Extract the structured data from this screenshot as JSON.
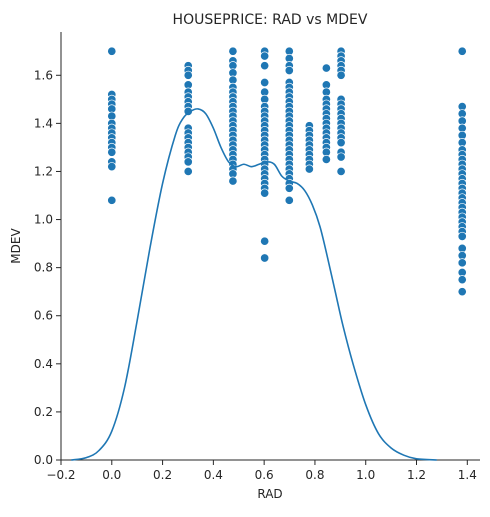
{
  "chart_data": {
    "type": "scatter",
    "title": "HOUSEPRICE: RAD  vs MDEV",
    "xlabel": "RAD",
    "ylabel": "MDEV",
    "xlim": [
      -0.2,
      1.45
    ],
    "ylim": [
      0.0,
      1.78
    ],
    "x_ticks": [
      -0.2,
      0.0,
      0.2,
      0.4,
      0.6,
      0.8,
      1.0,
      1.2,
      1.4
    ],
    "x_tick_labels": [
      "−0.2",
      "0.0",
      "0.2",
      "0.4",
      "0.6",
      "0.8",
      "1.0",
      "1.2",
      "1.4"
    ],
    "y_ticks": [
      0.0,
      0.2,
      0.4,
      0.6,
      0.8,
      1.0,
      1.2,
      1.4,
      1.6
    ],
    "y_tick_labels": [
      "0.0",
      "0.2",
      "0.4",
      "0.6",
      "0.8",
      "1.0",
      "1.2",
      "1.4",
      "1.6"
    ],
    "grid": false,
    "colors": {
      "points": "#1f77b4",
      "kde": "#1f77b4",
      "axis": "#262626"
    },
    "scatter": [
      {
        "x": 0.0,
        "values": [
          1.7,
          1.52,
          1.5,
          1.48,
          1.46,
          1.43,
          1.4,
          1.38,
          1.36,
          1.34,
          1.32,
          1.3,
          1.28,
          1.24,
          1.22,
          1.08
        ]
      },
      {
        "x": 0.301,
        "values": [
          1.64,
          1.62,
          1.6,
          1.56,
          1.53,
          1.51,
          1.49,
          1.47,
          1.45,
          1.38,
          1.36,
          1.34,
          1.32,
          1.3,
          1.28,
          1.26,
          1.24,
          1.2
        ]
      },
      {
        "x": 0.477,
        "values": [
          1.7,
          1.66,
          1.64,
          1.61,
          1.58,
          1.55,
          1.53,
          1.51,
          1.49,
          1.47,
          1.45,
          1.43,
          1.41,
          1.39,
          1.37,
          1.35,
          1.33,
          1.31,
          1.29,
          1.27,
          1.25,
          1.23,
          1.21,
          1.19,
          1.16
        ]
      },
      {
        "x": 0.602,
        "values": [
          1.7,
          1.68,
          1.64,
          1.57,
          1.53,
          1.5,
          1.47,
          1.45,
          1.43,
          1.41,
          1.39,
          1.37,
          1.35,
          1.33,
          1.31,
          1.29,
          1.27,
          1.25,
          1.23,
          1.21,
          1.19,
          1.17,
          1.15,
          1.13,
          1.11,
          0.91,
          0.84
        ]
      },
      {
        "x": 0.699,
        "values": [
          1.7,
          1.67,
          1.64,
          1.62,
          1.57,
          1.55,
          1.53,
          1.51,
          1.49,
          1.47,
          1.45,
          1.43,
          1.41,
          1.39,
          1.37,
          1.35,
          1.33,
          1.31,
          1.29,
          1.27,
          1.25,
          1.23,
          1.21,
          1.19,
          1.17,
          1.15,
          1.13,
          1.08
        ]
      },
      {
        "x": 0.778,
        "values": [
          1.39,
          1.37,
          1.35,
          1.33,
          1.31,
          1.29,
          1.27,
          1.25,
          1.23,
          1.21
        ]
      },
      {
        "x": 0.845,
        "values": [
          1.63,
          1.56,
          1.53,
          1.5,
          1.48,
          1.46,
          1.44,
          1.42,
          1.4,
          1.38,
          1.36,
          1.34,
          1.32,
          1.3,
          1.28,
          1.25
        ]
      },
      {
        "x": 0.903,
        "values": [
          1.7,
          1.68,
          1.66,
          1.64,
          1.62,
          1.6,
          1.5,
          1.48,
          1.46,
          1.44,
          1.42,
          1.4,
          1.38,
          1.36,
          1.34,
          1.32,
          1.28,
          1.26,
          1.2
        ]
      },
      {
        "x": 1.38,
        "values": [
          1.7,
          1.47,
          1.44,
          1.41,
          1.38,
          1.35,
          1.32,
          1.29,
          1.27,
          1.25,
          1.23,
          1.21,
          1.19,
          1.17,
          1.15,
          1.13,
          1.11,
          1.09,
          1.07,
          1.05,
          1.03,
          1.01,
          0.99,
          0.97,
          0.95,
          0.93,
          0.88,
          0.85,
          0.82,
          0.78,
          0.75,
          0.7
        ]
      }
    ],
    "kde": {
      "x": [
        -0.16,
        -0.1,
        -0.05,
        0.0,
        0.05,
        0.1,
        0.15,
        0.2,
        0.25,
        0.28,
        0.31,
        0.34,
        0.37,
        0.4,
        0.43,
        0.46,
        0.49,
        0.52,
        0.55,
        0.58,
        0.61,
        0.64,
        0.67,
        0.7,
        0.73,
        0.76,
        0.79,
        0.82,
        0.85,
        0.88,
        0.91,
        0.95,
        1.0,
        1.05,
        1.1,
        1.15,
        1.2,
        1.28
      ],
      "y": [
        0.0,
        0.01,
        0.04,
        0.12,
        0.3,
        0.58,
        0.88,
        1.15,
        1.35,
        1.42,
        1.45,
        1.46,
        1.44,
        1.38,
        1.3,
        1.24,
        1.22,
        1.23,
        1.22,
        1.23,
        1.24,
        1.23,
        1.18,
        1.16,
        1.15,
        1.12,
        1.06,
        0.97,
        0.84,
        0.7,
        0.56,
        0.4,
        0.23,
        0.11,
        0.05,
        0.02,
        0.005,
        0.0
      ]
    }
  }
}
